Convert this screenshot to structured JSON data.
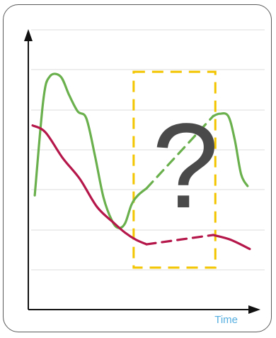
{
  "chart_data": {
    "type": "line",
    "xlabel": "Time",
    "ylabel": "",
    "title": "",
    "grid": true,
    "annotation": {
      "symbol": "?",
      "symbol_color": "#4a4a4a",
      "box_color": "#f2c500",
      "box_x_range": [
        4.9,
        8.7
      ],
      "box_y_range": [
        1.0,
        9.4
      ]
    },
    "series": [
      {
        "color": "#6ab04c",
        "points": [
          [
            0.3,
            4.1
          ],
          [
            0.7,
            8.2
          ],
          [
            1.0,
            9.2
          ],
          [
            1.5,
            9.2
          ],
          [
            1.9,
            8.4
          ],
          [
            2.3,
            7.7
          ],
          [
            2.7,
            7.4
          ],
          [
            3.1,
            5.8
          ],
          [
            3.5,
            4.0
          ],
          [
            3.9,
            3.0
          ],
          [
            4.2,
            2.7
          ],
          [
            4.5,
            2.9
          ],
          [
            4.8,
            3.7
          ],
          [
            5.1,
            4.1
          ],
          [
            5.5,
            4.4
          ]
        ]
      },
      {
        "color": "#6ab04c",
        "dashed": true,
        "points": [
          [
            5.5,
            4.4
          ],
          [
            8.6,
            7.5
          ]
        ]
      },
      {
        "color": "#6ab04c",
        "points": [
          [
            8.6,
            7.5
          ],
          [
            8.9,
            7.6
          ],
          [
            9.3,
            7.5
          ],
          [
            9.6,
            6.5
          ],
          [
            9.9,
            5.0
          ],
          [
            10.2,
            4.5
          ]
        ]
      },
      {
        "color": "#b5174b",
        "points": [
          [
            0.2,
            7.1
          ],
          [
            0.8,
            6.8
          ],
          [
            1.6,
            5.7
          ],
          [
            2.4,
            4.8
          ],
          [
            3.2,
            3.6
          ],
          [
            4.0,
            2.9
          ],
          [
            4.5,
            2.5
          ],
          [
            5.0,
            2.2
          ],
          [
            5.5,
            2.0
          ]
        ]
      },
      {
        "color": "#b5174b",
        "dashed": true,
        "points": [
          [
            5.5,
            2.0
          ],
          [
            8.6,
            2.4
          ]
        ]
      },
      {
        "color": "#b5174b",
        "points": [
          [
            8.6,
            2.4
          ],
          [
            9.4,
            2.2
          ],
          [
            10.3,
            1.8
          ]
        ]
      }
    ],
    "xlim": [
      0,
      10.6
    ],
    "ylim": [
      -0.8,
      11.2
    ]
  },
  "colors": {
    "axis": "#111111",
    "grid": "#dedede",
    "xlabel": "#55aee0"
  }
}
